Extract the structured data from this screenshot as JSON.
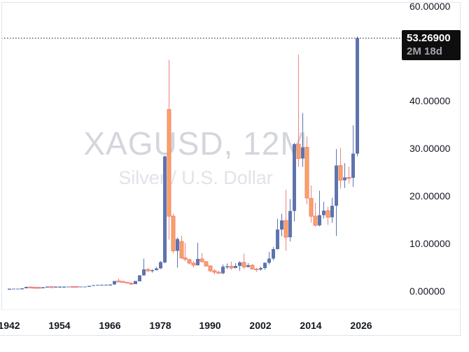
{
  "watermark": {
    "line1": "XAGUSD, 12M",
    "line2": "Silver / U.S. Dollar"
  },
  "price_badge": {
    "price": "53.26900",
    "countdown": "2M 18d",
    "bg": "#0e0e0e",
    "countdown_color": "#a3a6ad"
  },
  "price_axis": {
    "labels": [
      {
        "value": 60,
        "text": "60.00000"
      },
      {
        "value": 40,
        "text": "40.00000"
      },
      {
        "value": 30,
        "text": "30.00000"
      },
      {
        "value": 20,
        "text": "20.00000"
      },
      {
        "value": 10,
        "text": "10.00000"
      },
      {
        "value": 0,
        "text": "0.00000"
      }
    ]
  },
  "time_axis": {
    "labels": [
      {
        "year": 1942,
        "text": "1942"
      },
      {
        "year": 1954,
        "text": "1954"
      },
      {
        "year": 1966,
        "text": "1966"
      },
      {
        "year": 1978,
        "text": "1978"
      },
      {
        "year": 1990,
        "text": "1990"
      },
      {
        "year": 2002,
        "text": "2002"
      },
      {
        "year": 2014,
        "text": "2014"
      },
      {
        "year": 2026,
        "text": "2026"
      }
    ]
  },
  "colors": {
    "up": "#5e74ae",
    "down_fill": "#f8a35f",
    "down_border": "#f0837e",
    "down_wick": "#f0837e",
    "watermark_line1": "#d4d6dd",
    "watermark_line2": "#e1e3e9",
    "axis_text": "#131722",
    "frame": "#e0e3eb",
    "last_price_line": "#222222"
  },
  "chart_data": {
    "type": "candlestick",
    "symbol": "XAGUSD",
    "interval": "12M",
    "description": "Silver / U.S. Dollar",
    "last_price": 53.269,
    "countdown_to_bar_close": "2M 18d",
    "xlabel": "",
    "ylabel": "",
    "x_ticks_years": [
      1942,
      1954,
      1966,
      1978,
      1990,
      2002,
      2014,
      2026
    ],
    "y_ticks": [
      0,
      10,
      20,
      30,
      40,
      60
    ],
    "ylim": [
      0,
      61
    ],
    "xlim_years": [
      1941,
      2027
    ],
    "grid": false,
    "legend_position": "center-watermark",
    "candles_format": [
      "year",
      "open",
      "high",
      "low",
      "close"
    ],
    "candles": [
      [
        1942,
        0.38,
        0.42,
        0.35,
        0.41
      ],
      [
        1943,
        0.41,
        0.45,
        0.39,
        0.45
      ],
      [
        1944,
        0.45,
        0.47,
        0.42,
        0.45
      ],
      [
        1945,
        0.45,
        0.55,
        0.44,
        0.52
      ],
      [
        1946,
        0.52,
        0.9,
        0.5,
        0.8
      ],
      [
        1947,
        0.8,
        0.87,
        0.62,
        0.72
      ],
      [
        1948,
        0.72,
        0.78,
        0.7,
        0.71
      ],
      [
        1949,
        0.71,
        0.74,
        0.69,
        0.7
      ],
      [
        1950,
        0.7,
        0.8,
        0.69,
        0.74
      ],
      [
        1951,
        0.74,
        0.92,
        0.73,
        0.89
      ],
      [
        1952,
        0.89,
        0.9,
        0.83,
        0.85
      ],
      [
        1953,
        0.85,
        0.86,
        0.84,
        0.85
      ],
      [
        1954,
        0.85,
        0.86,
        0.84,
        0.85
      ],
      [
        1955,
        0.85,
        0.91,
        0.85,
        0.89
      ],
      [
        1956,
        0.89,
        0.92,
        0.88,
        0.91
      ],
      [
        1957,
        0.91,
        0.92,
        0.89,
        0.9
      ],
      [
        1958,
        0.9,
        0.91,
        0.88,
        0.89
      ],
      [
        1959,
        0.89,
        0.92,
        0.88,
        0.91
      ],
      [
        1960,
        0.91,
        0.92,
        0.9,
        0.91
      ],
      [
        1961,
        0.91,
        1.04,
        0.9,
        1.03
      ],
      [
        1962,
        1.03,
        1.22,
        1.01,
        1.2
      ],
      [
        1963,
        1.2,
        1.29,
        1.19,
        1.28
      ],
      [
        1964,
        1.28,
        1.3,
        1.27,
        1.29
      ],
      [
        1965,
        1.29,
        1.3,
        1.28,
        1.29
      ],
      [
        1966,
        1.29,
        1.32,
        1.28,
        1.3
      ],
      [
        1967,
        1.3,
        2.1,
        1.28,
        2.06
      ],
      [
        1968,
        2.06,
        2.56,
        1.8,
        1.96
      ],
      [
        1969,
        1.96,
        2.05,
        1.72,
        1.79
      ],
      [
        1970,
        1.79,
        1.93,
        1.57,
        1.63
      ],
      [
        1971,
        1.63,
        1.75,
        1.27,
        1.39
      ],
      [
        1972,
        1.39,
        2.05,
        1.37,
        2.03
      ],
      [
        1973,
        2.03,
        3.3,
        1.96,
        3.28
      ],
      [
        1974,
        3.28,
        6.76,
        3.2,
        4.47
      ],
      [
        1975,
        4.47,
        4.8,
        3.93,
        4.19
      ],
      [
        1976,
        4.19,
        4.49,
        3.83,
        4.35
      ],
      [
        1977,
        4.35,
        4.98,
        4.31,
        4.71
      ],
      [
        1978,
        4.71,
        6.26,
        4.6,
        6.02
      ],
      [
        1979,
        5.95,
        28.5,
        5.8,
        28.3
      ],
      [
        1980,
        38.2,
        48.7,
        10.8,
        15.7
      ],
      [
        1981,
        15.7,
        16.2,
        7.9,
        8.4
      ],
      [
        1982,
        8.4,
        11.2,
        4.9,
        10.9
      ],
      [
        1983,
        10.4,
        11.6,
        6.7,
        6.9
      ],
      [
        1984,
        6.9,
        10.1,
        6.2,
        6.6
      ],
      [
        1985,
        6.6,
        6.8,
        5.5,
        5.8
      ],
      [
        1986,
        5.8,
        6.3,
        4.9,
        5.4
      ],
      [
        1987,
        5.4,
        10.1,
        5.3,
        6.7
      ],
      [
        1988,
        6.7,
        8.0,
        6.0,
        6.1
      ],
      [
        1989,
        6.1,
        6.3,
        5.0,
        5.2
      ],
      [
        1990,
        5.2,
        5.4,
        3.9,
        4.2
      ],
      [
        1991,
        4.2,
        4.6,
        3.5,
        3.9
      ],
      [
        1992,
        3.9,
        4.3,
        3.6,
        3.7
      ],
      [
        1993,
        3.7,
        5.5,
        3.5,
        5.1
      ],
      [
        1994,
        5.1,
        5.75,
        4.6,
        5.15
      ],
      [
        1995,
        5.15,
        6.1,
        4.4,
        4.8
      ],
      [
        1996,
        4.8,
        5.8,
        4.7,
        5.2
      ],
      [
        1997,
        5.2,
        6.3,
        4.2,
        6.0
      ],
      [
        1998,
        6.0,
        7.8,
        4.6,
        5.0
      ],
      [
        1999,
        5.0,
        5.8,
        4.9,
        5.4
      ],
      [
        2000,
        5.4,
        5.6,
        4.55,
        4.6
      ],
      [
        2001,
        4.6,
        4.85,
        4.0,
        4.5
      ],
      [
        2002,
        4.5,
        5.1,
        4.2,
        4.8
      ],
      [
        2003,
        4.8,
        6.0,
        4.4,
        5.9
      ],
      [
        2004,
        5.9,
        8.2,
        5.5,
        6.8
      ],
      [
        2005,
        6.8,
        9.2,
        6.4,
        8.8
      ],
      [
        2006,
        8.8,
        15.2,
        8.7,
        12.9
      ],
      [
        2007,
        12.9,
        16.2,
        11.5,
        14.8
      ],
      [
        2008,
        14.8,
        21.3,
        8.4,
        11.3
      ],
      [
        2009,
        11.3,
        19.3,
        10.4,
        16.8
      ],
      [
        2010,
        16.8,
        31.2,
        14.6,
        30.9
      ],
      [
        2011,
        30.9,
        49.8,
        26.1,
        27.9
      ],
      [
        2012,
        27.9,
        37.5,
        26.1,
        30.2
      ],
      [
        2013,
        30.2,
        32.5,
        18.2,
        19.5
      ],
      [
        2014,
        19.5,
        22.2,
        14.4,
        15.7
      ],
      [
        2015,
        15.7,
        18.5,
        13.6,
        13.8
      ],
      [
        2016,
        13.8,
        21.1,
        13.6,
        15.9
      ],
      [
        2017,
        15.9,
        18.7,
        15.2,
        16.9
      ],
      [
        2018,
        16.9,
        17.7,
        13.9,
        15.5
      ],
      [
        2019,
        15.5,
        19.6,
        14.3,
        17.9
      ],
      [
        2020,
        17.9,
        29.9,
        11.6,
        26.4
      ],
      [
        2021,
        26.4,
        30.1,
        21.5,
        23.3
      ],
      [
        2022,
        23.3,
        26.9,
        21.7,
        23.9
      ],
      [
        2023,
        23.9,
        26.2,
        22.6,
        23.8
      ],
      [
        2024,
        23.8,
        34.9,
        21.9,
        28.9
      ],
      [
        2025,
        28.9,
        53.6,
        28.3,
        53.269
      ]
    ]
  }
}
